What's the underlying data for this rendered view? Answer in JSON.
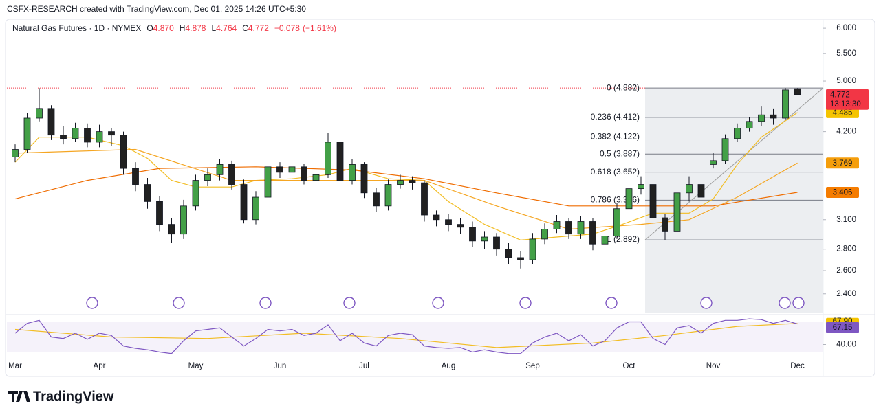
{
  "attribution": "CSFX-RESEARCH created with TradingView.com, Dec 01, 2025 14:26 UTC+5:30",
  "brand": "TradingView",
  "chart_data": [
    {
      "type": "candlestick",
      "title": "Natural Gas Futures · 1D · NYMEX",
      "ohlc_names": [
        "O",
        "H",
        "L",
        "C"
      ],
      "ohlc_values": [
        4.87,
        4.878,
        4.764,
        4.772
      ],
      "ohlc_labels": [
        "4.870",
        "4.878",
        "4.764",
        "4.772"
      ],
      "change": {
        "value": -0.078,
        "label": "−0.078"
      },
      "change_pct": {
        "value": -1.61,
        "label": "(−1.61%)"
      },
      "countdown": "13:13:30",
      "log_scale": true,
      "up_color": "#43a047",
      "down_color": "#212121",
      "categories": [
        "Mar",
        null,
        null,
        null,
        null,
        null,
        null,
        "Apr",
        null,
        null,
        null,
        null,
        null,
        null,
        null,
        "May",
        null,
        null,
        null,
        null,
        null,
        null,
        "Jun",
        null,
        null,
        null,
        null,
        null,
        null,
        "Jul",
        null,
        null,
        null,
        null,
        null,
        null,
        "Aug",
        null,
        null,
        null,
        null,
        null,
        null,
        "Sep",
        null,
        null,
        null,
        null,
        null,
        null,
        null,
        "Oct",
        null,
        null,
        null,
        null,
        null,
        null,
        "Nov",
        null,
        null,
        null,
        null,
        null,
        null,
        "Dec"
      ],
      "open": [
        3.85,
        3.95,
        4.4,
        4.55,
        4.15,
        4.1,
        4.25,
        4.05,
        4.2,
        4.15,
        3.7,
        3.5,
        3.3,
        3.05,
        2.95,
        3.25,
        3.55,
        3.62,
        3.75,
        3.5,
        3.1,
        3.35,
        3.72,
        3.65,
        3.72,
        3.55,
        3.62,
        4.05,
        3.55,
        3.75,
        3.4,
        3.25,
        3.5,
        3.55,
        3.52,
        3.15,
        3.1,
        3.05,
        3.02,
        2.88,
        2.92,
        2.8,
        2.72,
        2.7,
        2.9,
        3.0,
        3.08,
        2.95,
        3.08,
        2.85,
        2.93,
        3.22,
        3.45,
        3.5,
        3.12,
        2.98,
        3.4,
        3.5,
        3.75,
        3.8,
        4.1,
        4.25,
        4.35,
        4.45,
        4.4,
        4.87
      ],
      "high": [
        4.02,
        4.48,
        4.88,
        4.6,
        4.28,
        4.33,
        4.32,
        4.3,
        4.25,
        4.2,
        3.78,
        3.58,
        3.36,
        3.12,
        3.32,
        3.62,
        3.7,
        3.82,
        3.8,
        3.56,
        3.42,
        3.8,
        3.78,
        3.8,
        3.76,
        3.7,
        4.18,
        4.08,
        3.82,
        3.78,
        3.46,
        3.56,
        3.62,
        3.6,
        3.55,
        3.2,
        3.16,
        3.12,
        3.08,
        2.98,
        2.96,
        2.86,
        2.78,
        2.96,
        3.06,
        3.15,
        3.12,
        3.14,
        3.12,
        2.98,
        3.28,
        3.55,
        3.6,
        3.54,
        3.16,
        3.48,
        3.6,
        3.55,
        3.9,
        4.16,
        4.32,
        4.42,
        4.58,
        4.55,
        4.88,
        4.878
      ],
      "low": [
        3.78,
        3.9,
        4.35,
        4.08,
        4.02,
        4.05,
        3.98,
        3.98,
        4.0,
        3.62,
        3.42,
        3.22,
        2.98,
        2.86,
        2.9,
        3.2,
        3.48,
        3.55,
        3.44,
        3.06,
        3.05,
        3.3,
        3.58,
        3.6,
        3.5,
        3.5,
        3.58,
        3.48,
        3.5,
        3.34,
        3.18,
        3.2,
        3.45,
        3.44,
        3.08,
        3.03,
        2.98,
        2.95,
        2.82,
        2.8,
        2.74,
        2.66,
        2.62,
        2.66,
        2.85,
        2.96,
        2.9,
        2.9,
        2.79,
        2.8,
        2.9,
        3.18,
        3.38,
        3.06,
        2.89,
        2.95,
        3.3,
        3.25,
        3.7,
        3.76,
        4.05,
        4.2,
        4.28,
        4.3,
        4.38,
        4.764
      ],
      "close": [
        3.95,
        4.4,
        4.55,
        4.15,
        4.1,
        4.25,
        4.05,
        4.2,
        4.15,
        3.7,
        3.5,
        3.3,
        3.05,
        2.95,
        3.25,
        3.55,
        3.62,
        3.75,
        3.5,
        3.1,
        3.35,
        3.72,
        3.65,
        3.72,
        3.55,
        3.62,
        4.05,
        3.55,
        3.75,
        3.4,
        3.25,
        3.5,
        3.55,
        3.52,
        3.15,
        3.1,
        3.05,
        3.02,
        2.88,
        2.92,
        2.8,
        2.72,
        2.7,
        2.9,
        3.0,
        3.08,
        2.95,
        3.08,
        2.85,
        2.93,
        3.22,
        3.45,
        3.5,
        3.12,
        2.98,
        3.4,
        3.5,
        3.35,
        3.8,
        4.1,
        4.25,
        4.35,
        4.45,
        4.4,
        4.85,
        4.772
      ],
      "overlays": [
        {
          "color": "#f2bd24",
          "tag_color": "#f5c400",
          "x": [
            0,
            2,
            6,
            9,
            11,
            13,
            15,
            18,
            20,
            23,
            26,
            28,
            31,
            34,
            36,
            39,
            42,
            45,
            48,
            50,
            53,
            56,
            58,
            60,
            62,
            65
          ],
          "values": [
            3.78,
            4.12,
            4.12,
            4.0,
            3.83,
            3.55,
            3.47,
            3.47,
            3.55,
            3.57,
            3.62,
            3.7,
            3.57,
            3.55,
            3.3,
            3.05,
            2.89,
            2.92,
            2.95,
            3.03,
            3.17,
            3.17,
            3.33,
            3.75,
            4.12,
            4.485
          ]
        },
        {
          "color": "#f5a623",
          "tag_color": "#f59e0b",
          "x": [
            0,
            10,
            18,
            26,
            34,
            40,
            46,
            52,
            56,
            60,
            65
          ],
          "values": [
            3.9,
            3.95,
            3.55,
            3.55,
            3.55,
            3.25,
            3.0,
            3.05,
            3.1,
            3.35,
            3.769
          ]
        },
        {
          "color": "#ef6c00",
          "tag_color": "#f57c00",
          "x": [
            0,
            6,
            12,
            20,
            28,
            34,
            40,
            46,
            52,
            58,
            65
          ],
          "values": [
            3.33,
            3.55,
            3.7,
            3.72,
            3.68,
            3.57,
            3.4,
            3.25,
            3.25,
            3.25,
            3.406
          ]
        }
      ],
      "fib_levels": [
        {
          "value": 4.882,
          "label": "0 (4.882)"
        },
        {
          "value": 4.412,
          "label": "0.236 (4.412)"
        },
        {
          "value": 4.122,
          "label": "0.382 (4.122)"
        },
        {
          "value": 3.887,
          "label": "0.5 (3.887)"
        },
        {
          "value": 3.652,
          "label": "0.618 (3.652)"
        },
        {
          "value": 3.316,
          "label": "0.786 (3.316)"
        },
        {
          "value": 2.892,
          "label": "1 (2.892)"
        }
      ],
      "ylim": [
        2.25,
        6.16
      ],
      "yticks": [
        {
          "value": 2.4,
          "label": "2.400"
        },
        {
          "value": 2.6,
          "label": "2.600"
        },
        {
          "value": 2.8,
          "label": "2.800"
        },
        {
          "value": 3.1,
          "label": "3.100"
        },
        {
          "value": 4.2,
          "label": "4.200"
        },
        {
          "value": 5,
          "label": "5.000"
        },
        {
          "value": 5.5,
          "label": "5.500"
        },
        {
          "value": 6,
          "label": "6.000"
        }
      ]
    },
    {
      "type": "line",
      "color": "#7e57c2",
      "values": [
        55,
        68,
        72,
        50,
        48,
        55,
        47,
        55,
        52,
        38,
        35,
        33,
        30,
        28,
        45,
        58,
        60,
        62,
        50,
        38,
        48,
        60,
        58,
        60,
        52,
        55,
        66,
        45,
        55,
        42,
        38,
        52,
        55,
        53,
        38,
        36,
        35,
        36,
        30,
        33,
        30,
        28,
        28,
        42,
        50,
        55,
        45,
        53,
        38,
        45,
        62,
        70,
        70,
        48,
        40,
        62,
        65,
        55,
        68,
        72,
        72,
        74,
        73,
        68,
        72,
        67.15
      ],
      "ma": {
        "color": "#f2bd24",
        "x": [
          0,
          8,
          16,
          24,
          32,
          40,
          48,
          54,
          60,
          65
        ],
        "values": [
          60,
          50,
          48,
          55,
          48,
          36,
          42,
          52,
          64,
          67.9
        ],
        "value_labels": [
          null,
          null,
          null,
          null,
          null,
          null,
          null,
          null,
          null,
          "67.90"
        ]
      },
      "bands": [
        70,
        50,
        30
      ],
      "ylim": [
        25,
        75
      ],
      "yticks": [
        {
          "value": 40,
          "label": "40.00"
        }
      ]
    }
  ]
}
